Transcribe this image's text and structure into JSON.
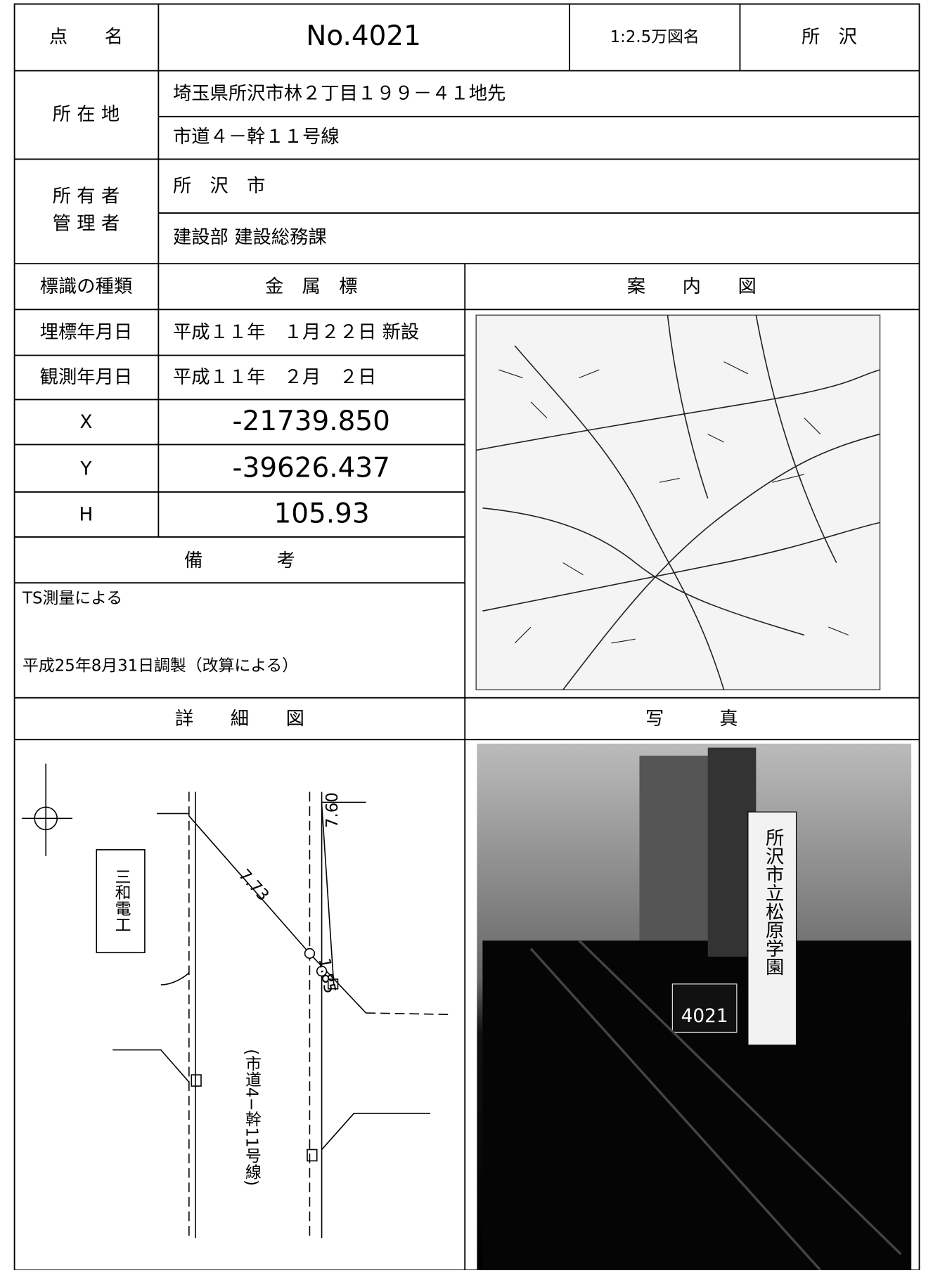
{
  "header": {
    "point_label": "点　　名",
    "point_no": "No.4021",
    "map_label": "1:2.5万図名",
    "map_name": "所　沢"
  },
  "location": {
    "label": "所 在 地",
    "lines": [
      "埼玉県所沢市林２丁目１９９－４１地先",
      "市道４－幹１１号線"
    ]
  },
  "owner": {
    "labels": [
      "所 有 者",
      "管 理 者"
    ],
    "values": [
      "所　沢　市",
      "建設部 建設総務課"
    ]
  },
  "marker_type": {
    "label": "標識の種類",
    "value": "金　属　標"
  },
  "guide_map_label": "案　　内　　図",
  "buried_date": {
    "label": "埋標年月日",
    "value": "平成１１年　１月２２日 新設"
  },
  "observed_date": {
    "label": "観測年月日",
    "value": "平成１１年　２月　２日"
  },
  "coords": [
    {
      "label": "X",
      "value": "-21739.850"
    },
    {
      "label": "Y",
      "value": "-39626.437"
    },
    {
      "label": "H",
      "value": "105.93"
    }
  ],
  "remarks": {
    "label": "備　　　　考",
    "lines": [
      "TS測量による",
      "平成25年8月31日調製（改算による）"
    ]
  },
  "detail_label": "詳　　細　　図",
  "photo_label": "写　　　真",
  "diagram": {
    "building": "三和電工",
    "road": "(市道4−幹11号線)",
    "distances": [
      "7.73",
      "7.60",
      "1.85"
    ]
  },
  "photo": {
    "sign": "所沢市立松原学園",
    "plate": "4021"
  }
}
